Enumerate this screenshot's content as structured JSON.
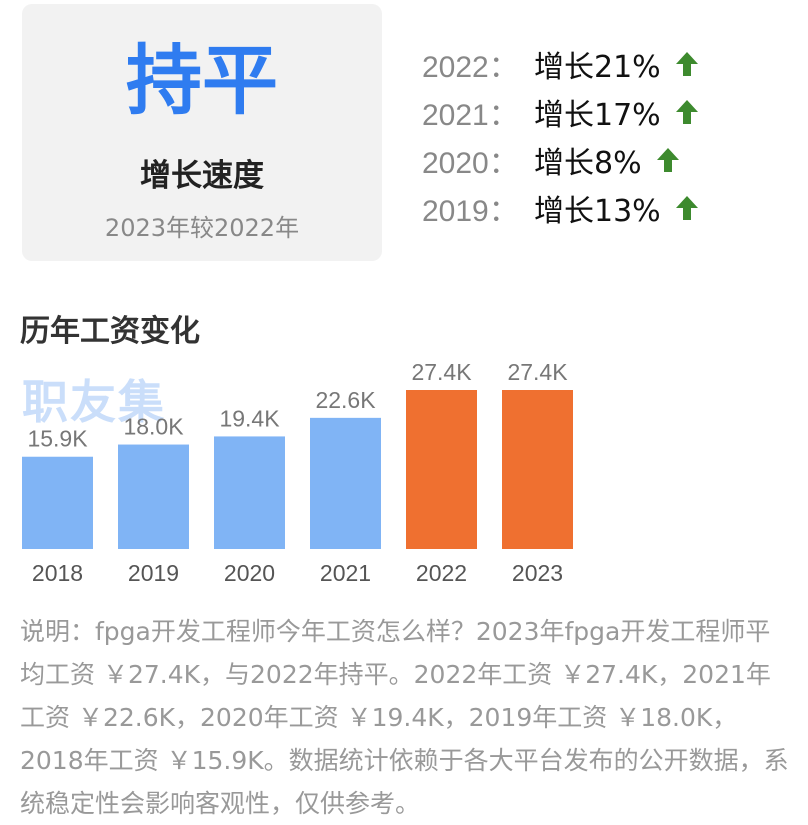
{
  "summary": {
    "status": "持平",
    "label": "增长速度",
    "compare": "2023年较2022年"
  },
  "growth": [
    {
      "year": "2022：",
      "text": "增长21%",
      "icon": "arrow-up-icon"
    },
    {
      "year": "2021：",
      "text": "增长17%",
      "icon": "arrow-up-icon"
    },
    {
      "year": "2020：",
      "text": "增长8%",
      "icon": "arrow-up-icon"
    },
    {
      "year": "2019：",
      "text": "增长13%",
      "icon": "arrow-up-icon"
    }
  ],
  "section_title": "历年工资变化",
  "watermark": "职友集",
  "chart_data": {
    "type": "bar",
    "categories": [
      "2018",
      "2019",
      "2020",
      "2021",
      "2022",
      "2023"
    ],
    "values": [
      15.9,
      18.0,
      19.4,
      22.6,
      27.4,
      27.4
    ],
    "value_labels": [
      "15.9K",
      "18.0K",
      "19.4K",
      "22.6K",
      "27.4K",
      "27.4K"
    ],
    "title": "历年工资变化",
    "xlabel": "",
    "ylabel": "",
    "ylim": [
      0,
      27.4
    ],
    "colors": [
      "#80b4f5",
      "#80b4f5",
      "#80b4f5",
      "#80b4f5",
      "#ef7030",
      "#ef7030"
    ],
    "grid": false
  },
  "description": "说明：fpga开发工程师今年工资怎么样？2023年fpga开发工程师平均工资 ￥27.4K，与2022年持平。2022年工资 ￥27.4K，2021年工资 ￥22.6K，2020年工资 ￥19.4K，2019年工资 ￥18.0K，2018年工资 ￥15.9K。数据统计依赖于各大平台发布的公开数据，系统稳定性会影响客观性，仅供参考。",
  "colors": {
    "accent_blue": "#2f7cf0",
    "bar_blue": "#80b4f5",
    "bar_orange": "#ef7030",
    "up_green": "#3d8a2e"
  }
}
